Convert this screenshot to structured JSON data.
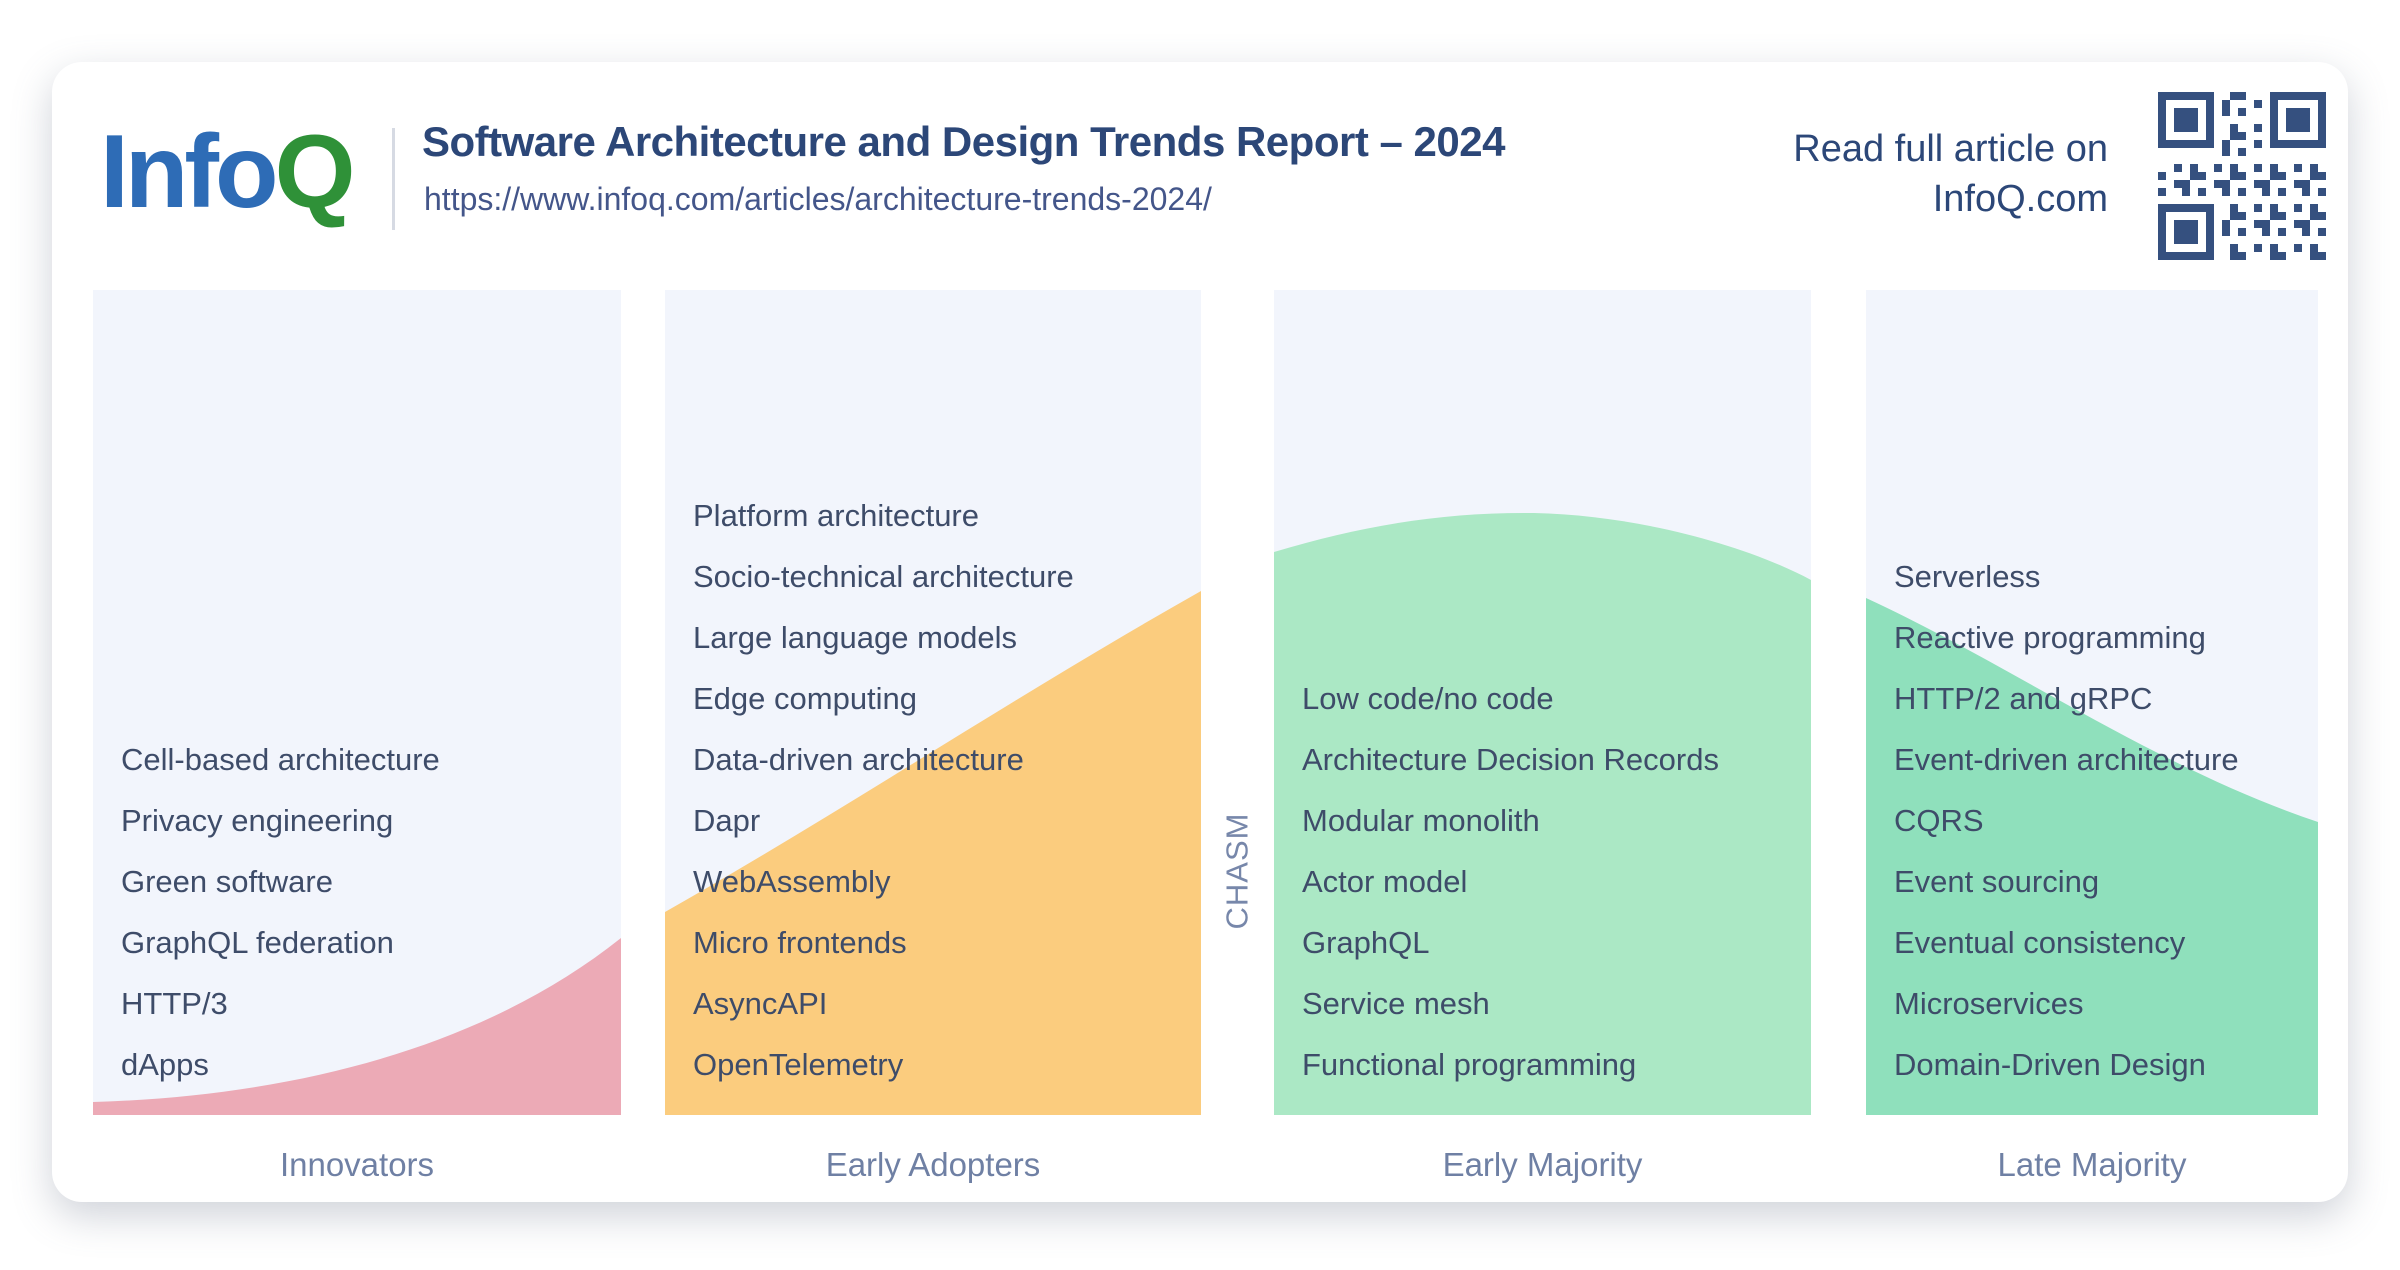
{
  "header": {
    "logo_part1": "Info",
    "logo_part2": "Q",
    "title": "Software Architecture and Design Trends Report – 2024",
    "url": "https://www.infoq.com/articles/architecture-trends-2024/",
    "cta_line1": "Read full article on",
    "cta_line2": "InfoQ.com"
  },
  "chasm_label": "CHASM",
  "stages": [
    {
      "label": "Innovators",
      "color": "#ecaab6",
      "items": [
        "Cell-based architecture",
        "Privacy engineering",
        "Green software",
        "GraphQL federation",
        "HTTP/3",
        "dApps"
      ]
    },
    {
      "label": "Early Adopters",
      "color": "#fbcc7e",
      "items": [
        "Platform architecture",
        "Socio-technical architecture",
        "Large language models",
        "Edge computing",
        "Data-driven architecture",
        "Dapr",
        "WebAssembly",
        "Micro frontends",
        "AsyncAPI",
        "OpenTelemetry"
      ]
    },
    {
      "label": "Early Majority",
      "color": "#abe8c5",
      "items": [
        "Low code/no code",
        "Architecture Decision Records",
        "Modular monolith",
        "Actor model",
        "GraphQL",
        "Service mesh",
        "Functional programming"
      ]
    },
    {
      "label": "Late Majority",
      "color": "#8fe0bc",
      "items": [
        "Serverless",
        "Reactive programming",
        "HTTP/2 and gRPC",
        "Event-driven architecture",
        "CQRS",
        "Event sourcing",
        "Eventual consistency",
        "Microservices",
        "Domain-Driven Design"
      ]
    }
  ],
  "colors": {
    "logo_blue": "#2e6cb6",
    "logo_green": "#2f9138",
    "title_navy": "#2c4778",
    "column_background": "#f2f5fc",
    "stage_label": "#6f80a4",
    "qr_navy": "#35507f"
  }
}
